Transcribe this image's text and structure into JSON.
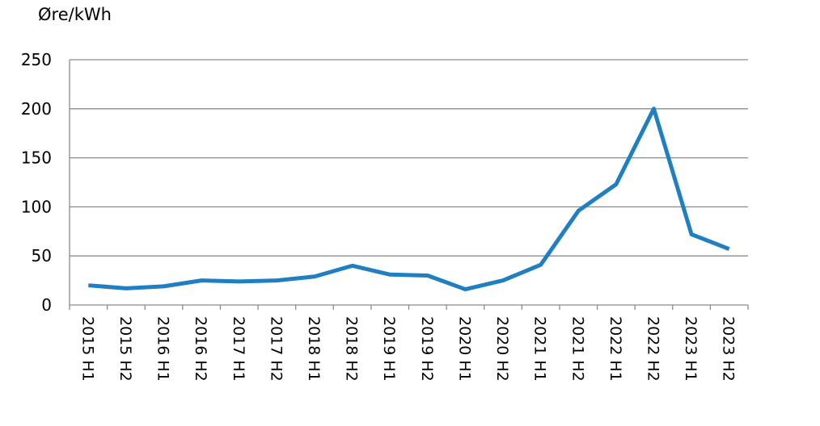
{
  "chart_data": {
    "type": "line",
    "title": "",
    "xlabel": "",
    "ylabel": "Øre/kWh",
    "ylim": [
      0,
      250
    ],
    "yticks": [
      0,
      50,
      100,
      150,
      200,
      250
    ],
    "grid": true,
    "legend": "none",
    "color": "#1f7fc0",
    "categories": [
      "2015 H1",
      "2015 H2",
      "2016 H1",
      "2016 H2",
      "2017 H1",
      "2017 H2",
      "2018 H1",
      "2018 H2",
      "2019 H1",
      "2019 H2",
      "2020 H1",
      "2020 H2",
      "2021 H1",
      "2021 H2",
      "2022 H1",
      "2022 H2",
      "2023 H1",
      "2023 H2"
    ],
    "series": [
      {
        "values": [
          20,
          17,
          19,
          25,
          24,
          25,
          29,
          40,
          31,
          30,
          16,
          25,
          41,
          96,
          123,
          200,
          72,
          57
        ]
      }
    ]
  }
}
